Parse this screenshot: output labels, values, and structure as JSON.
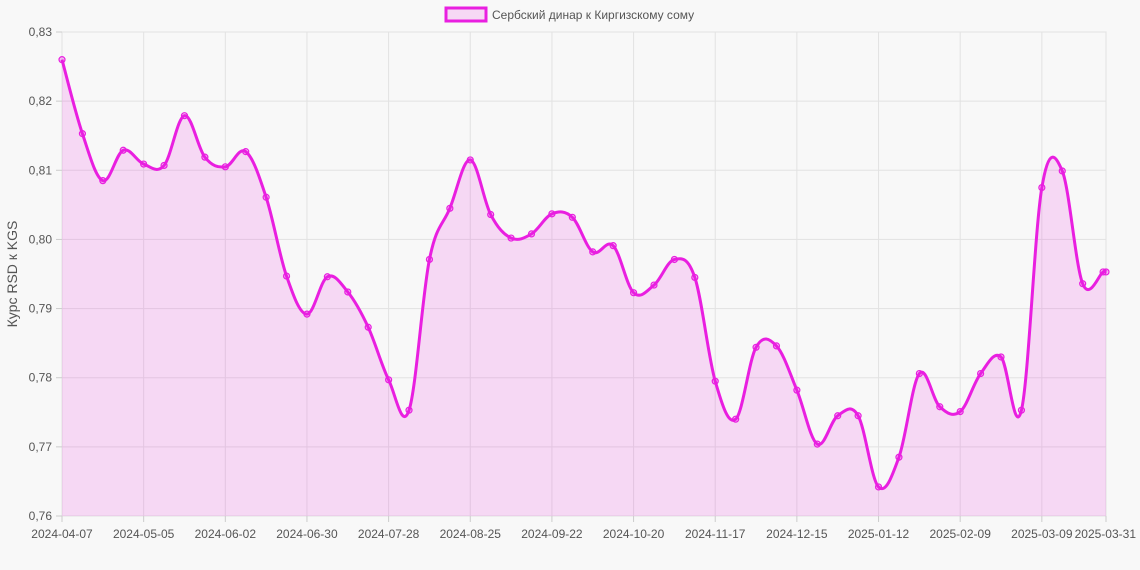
{
  "chart_data": {
    "type": "area",
    "ylabel": "Курс RSD к KGS",
    "ylim": [
      0.76,
      0.83
    ],
    "y_ticks": [
      "0,83",
      "0,82",
      "0,81",
      "0,80",
      "0,79",
      "0,78",
      "0,77",
      "0,76"
    ],
    "x_ticks": [
      "2024-04-07",
      "2024-05-05",
      "2024-06-02",
      "2024-06-30",
      "2024-07-28",
      "2024-08-25",
      "2024-09-22",
      "2024-10-20",
      "2024-11-17",
      "2024-12-15",
      "2025-01-12",
      "2025-02-09",
      "2025-03-09",
      "2025-03-31"
    ],
    "grid": true,
    "legend_position": "top-center",
    "series": [
      {
        "name": "Сербский динар к Киргизскому сому",
        "color": "#e91fe0",
        "fill": "rgba(233,31,224,0.15)",
        "x": [
          "2024-04-07",
          "2024-04-14",
          "2024-04-21",
          "2024-04-28",
          "2024-05-05",
          "2024-05-12",
          "2024-05-19",
          "2024-05-26",
          "2024-06-02",
          "2024-06-09",
          "2024-06-16",
          "2024-06-23",
          "2024-06-30",
          "2024-07-07",
          "2024-07-14",
          "2024-07-21",
          "2024-07-28",
          "2024-08-04",
          "2024-08-11",
          "2024-08-18",
          "2024-08-25",
          "2024-09-01",
          "2024-09-08",
          "2024-09-15",
          "2024-09-22",
          "2024-09-29",
          "2024-10-06",
          "2024-10-13",
          "2024-10-20",
          "2024-10-27",
          "2024-11-03",
          "2024-11-10",
          "2024-11-17",
          "2024-11-24",
          "2024-12-01",
          "2024-12-08",
          "2024-12-15",
          "2024-12-22",
          "2024-12-29",
          "2025-01-05",
          "2025-01-12",
          "2025-01-19",
          "2025-01-26",
          "2025-02-02",
          "2025-02-09",
          "2025-02-16",
          "2025-02-23",
          "2025-03-02",
          "2025-03-09",
          "2025-03-16",
          "2025-03-23",
          "2025-03-30",
          "2025-03-31"
        ],
        "values": [
          0.826,
          0.8153,
          0.8085,
          0.8129,
          0.8109,
          0.8107,
          0.8179,
          0.8119,
          0.8105,
          0.8127,
          0.8061,
          0.7947,
          0.7892,
          0.7946,
          0.7924,
          0.7873,
          0.7797,
          0.7753,
          0.7971,
          0.8045,
          0.8115,
          0.8036,
          0.8002,
          0.8008,
          0.8037,
          0.8032,
          0.7982,
          0.7991,
          0.7923,
          0.7934,
          0.7971,
          0.7945,
          0.7795,
          0.774,
          0.7844,
          0.7846,
          0.7782,
          0.7704,
          0.7745,
          0.7745,
          0.7642,
          0.7685,
          0.7806,
          0.7758,
          0.7751,
          0.7806,
          0.783,
          0.7753,
          0.8075,
          0.8099,
          0.7936,
          0.7953,
          0.7953
        ]
      }
    ]
  }
}
